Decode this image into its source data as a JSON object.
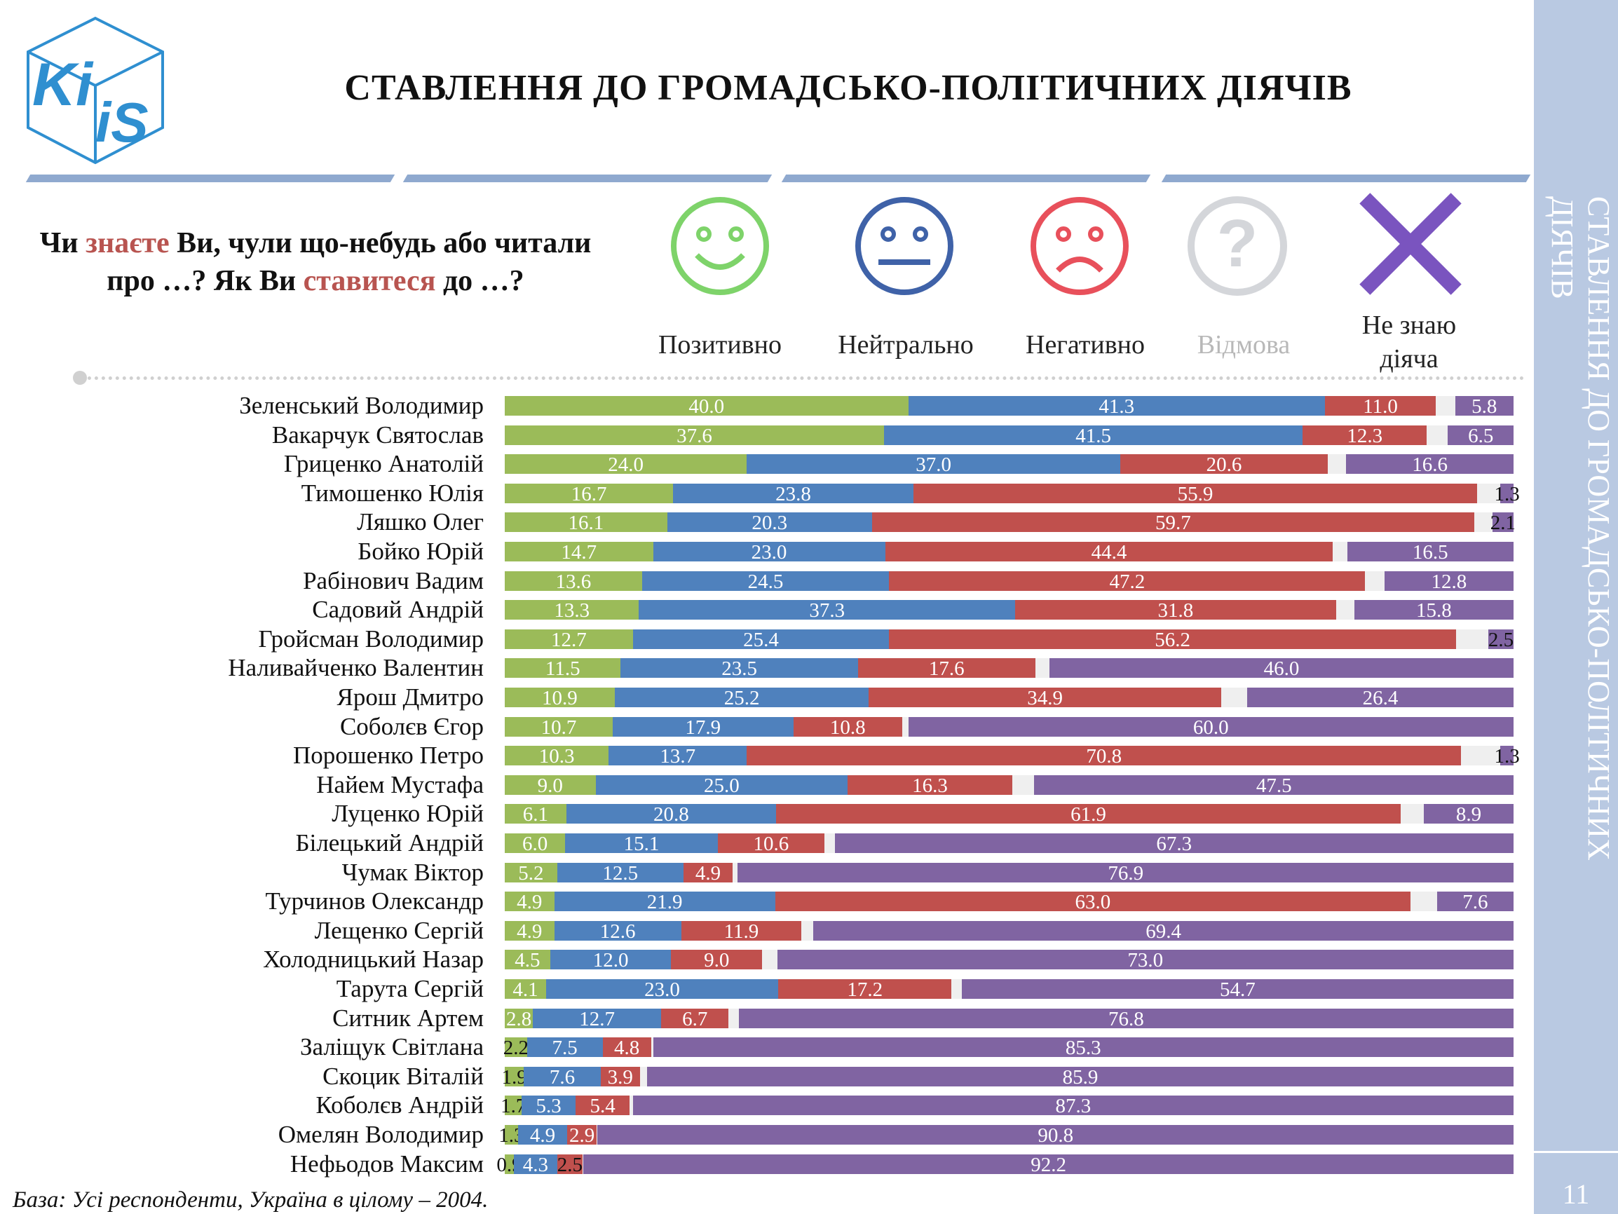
{
  "title": "СТАВЛЕННЯ ДО ГРОМАДСЬКО-ПОЛІТИЧНИХ ДІЯЧІВ",
  "sidebar_title": "СТАВЛЕННЯ ДО ГРОМАДСЬКО-ПОЛІТИЧНИХ ДІЯЧІВ",
  "page_number": "11",
  "logo_text": "KIIS",
  "question": {
    "part1": "Чи ",
    "hl1": "знаєте",
    "part2": " Ви, чули що-небудь або читали про …? Як Ви ",
    "hl2": "ставитеся",
    "part3": " до …?"
  },
  "footer": "База: Усі респонденти, Україна в цілому – 2004.",
  "colors": {
    "positive": "#9bbb59",
    "neutral": "#4f81bd",
    "negative": "#c0504d",
    "refusal": "#efefef",
    "dont_know": "#8064a2"
  },
  "chart_data": {
    "type": "bar",
    "orientation": "horizontal",
    "stacked": true,
    "title": "СТАВЛЕННЯ ДО ГРОМАДСЬКО-ПОЛІТИЧНИХ ДІЯЧІВ",
    "xlim": [
      0,
      100
    ],
    "unit": "%",
    "legend": [
      "Позитивно",
      "Нейтрально",
      "Негативно",
      "Відмова",
      "Не знаю діяча"
    ],
    "categories": [
      "Зеленський Володимир",
      "Вакарчук Святослав",
      "Гриценко Анатолій",
      "Тимошенко Юлія",
      "Ляшко Олег",
      "Бойко Юрій",
      "Рабінович Вадим",
      "Садовий Андрій",
      "Гройсман Володимир",
      "Наливайченко Валентин",
      "Ярош Дмитро",
      "Соболєв Єгор",
      "Порошенко Петро",
      "Найем Мустафа",
      "Луценко Юрій",
      "Білецький Андрій",
      "Чумак Віктор",
      "Турчинов Олександр",
      "Лещенко Сергій",
      "Холодницький Назар",
      "Тарута Сергій",
      "Ситник Артем",
      "Заліщук Світлана",
      "Скоцик Віталій",
      "Коболєв Андрій",
      "Омелян Володимир",
      "Нефьодов Максим"
    ],
    "series": [
      {
        "name": "Позитивно",
        "values": [
          40.0,
          37.6,
          24.0,
          16.7,
          16.1,
          14.7,
          13.6,
          13.3,
          12.7,
          11.5,
          10.9,
          10.7,
          10.3,
          9.0,
          6.1,
          6.0,
          5.2,
          4.9,
          4.9,
          4.5,
          4.1,
          2.8,
          2.2,
          1.9,
          1.7,
          1.3,
          0.9
        ]
      },
      {
        "name": "Нейтрально",
        "values": [
          41.3,
          41.5,
          37.0,
          23.8,
          20.3,
          23.0,
          24.5,
          37.3,
          25.4,
          23.5,
          25.2,
          17.9,
          13.7,
          25.0,
          20.8,
          15.1,
          12.5,
          21.9,
          12.6,
          12.0,
          23.0,
          12.7,
          7.5,
          7.6,
          5.3,
          4.9,
          4.3
        ]
      },
      {
        "name": "Негативно",
        "values": [
          11.0,
          12.3,
          20.6,
          55.9,
          59.7,
          44.4,
          47.2,
          31.8,
          56.2,
          17.6,
          34.9,
          10.8,
          70.8,
          16.3,
          61.9,
          10.6,
          4.9,
          63.0,
          11.9,
          9.0,
          17.2,
          6.7,
          4.8,
          3.9,
          5.4,
          2.9,
          2.5
        ]
      },
      {
        "name": "Не знаю діяча",
        "values": [
          5.8,
          6.5,
          16.6,
          1.3,
          2.1,
          16.5,
          12.8,
          15.8,
          2.5,
          46.0,
          26.4,
          60.0,
          1.3,
          47.5,
          8.9,
          67.3,
          76.9,
          7.6,
          69.4,
          73.0,
          54.7,
          76.8,
          85.3,
          85.9,
          87.3,
          90.8,
          92.2
        ]
      }
    ]
  }
}
